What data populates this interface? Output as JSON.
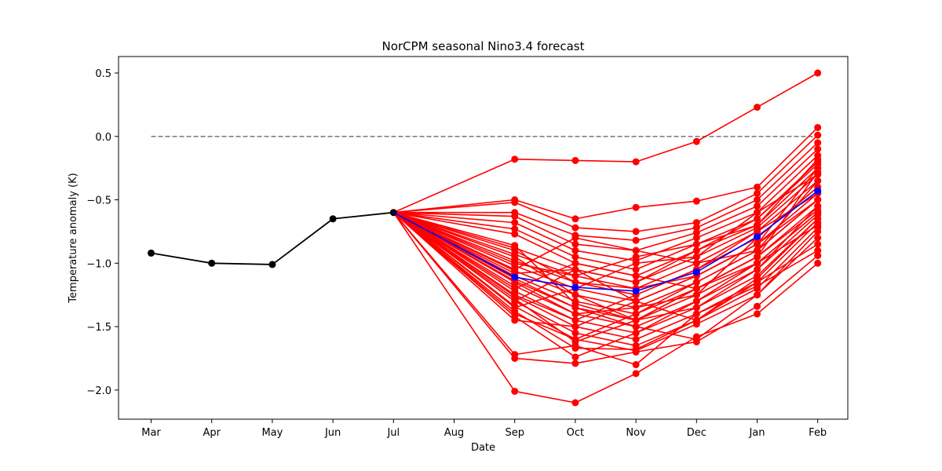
{
  "chart_data": {
    "type": "line",
    "title": "NorCPM seasonal Nino3.4 forecast",
    "xlabel": "Date",
    "ylabel": "Temperature anomaly (K)",
    "categories": [
      "Mar",
      "Apr",
      "May",
      "Jun",
      "Jul",
      "Aug",
      "Sep",
      "Oct",
      "Nov",
      "Dec",
      "Jan",
      "Feb"
    ],
    "ylim": [
      -2.23,
      0.63
    ],
    "yticks": [
      0.5,
      0.0,
      -0.5,
      -1.0,
      -1.5,
      -2.0
    ],
    "ytick_labels": [
      "0.5",
      "0.0",
      "−0.5",
      "−1.0",
      "−1.5",
      "−2.0"
    ],
    "reference_line": {
      "value": 0.0,
      "from": "Mar",
      "to": "Feb",
      "style": "dashed",
      "color": "#808080"
    },
    "colors": {
      "observed": "#000000",
      "ensemble": "#ff0000",
      "mean": "#0000ff"
    },
    "observed": {
      "categories": [
        "Mar",
        "Apr",
        "May",
        "Jun",
        "Jul"
      ],
      "values": [
        -0.92,
        -1.0,
        -1.01,
        -0.65,
        -0.6
      ]
    },
    "forecast_start": {
      "category": "Jul",
      "value": -0.6
    },
    "forecast_categories": [
      "Sep",
      "Oct",
      "Nov",
      "Dec",
      "Jan",
      "Feb"
    ],
    "ensemble": [
      [
        -0.18,
        -0.19,
        -0.2,
        -0.04,
        0.23,
        0.5
      ],
      [
        -2.01,
        -2.1,
        -1.87,
        -1.58,
        -1.4,
        -1.0
      ],
      [
        -1.75,
        -1.79,
        -1.7,
        -1.62,
        -1.34,
        -0.94
      ],
      [
        -1.72,
        -1.65,
        -1.8,
        -1.4,
        -1.18,
        -0.9
      ],
      [
        -0.5,
        -0.65,
        -0.56,
        -0.51,
        -0.4,
        0.07
      ],
      [
        -0.52,
        -0.72,
        -0.75,
        -0.68,
        -0.45,
        0.01
      ],
      [
        -0.6,
        -0.78,
        -0.82,
        -0.72,
        -0.5,
        -0.05
      ],
      [
        -0.63,
        -0.85,
        -0.9,
        -0.76,
        -0.55,
        -0.1
      ],
      [
        -0.68,
        -0.9,
        -0.98,
        -0.8,
        -0.6,
        -0.15
      ],
      [
        -0.73,
        -0.95,
        -1.05,
        -0.85,
        -0.65,
        -0.2
      ],
      [
        -0.77,
        -1.0,
        -1.1,
        -0.9,
        -0.7,
        -0.25
      ],
      [
        -0.88,
        -1.05,
        -1.15,
        -0.95,
        -0.72,
        -0.3
      ],
      [
        -0.93,
        -1.1,
        -1.2,
        -1.0,
        -0.75,
        -0.35
      ],
      [
        -0.98,
        -1.15,
        -1.25,
        -1.05,
        -0.8,
        -0.4
      ],
      [
        -1.02,
        -1.2,
        -1.3,
        -1.1,
        -0.85,
        -0.45
      ],
      [
        -1.06,
        -1.25,
        -1.35,
        -1.15,
        -0.9,
        -0.5
      ],
      [
        -1.1,
        -1.3,
        -1.4,
        -1.2,
        -0.95,
        -0.55
      ],
      [
        -1.14,
        -1.35,
        -1.45,
        -1.25,
        -1.0,
        -0.6
      ],
      [
        -1.18,
        -1.4,
        -1.5,
        -1.3,
        -1.05,
        -0.62
      ],
      [
        -1.22,
        -1.45,
        -1.55,
        -1.35,
        -1.1,
        -0.65
      ],
      [
        -1.26,
        -1.5,
        -1.6,
        -1.4,
        -1.15,
        -0.68
      ],
      [
        -1.3,
        -1.55,
        -1.65,
        -1.45,
        -1.2,
        -0.72
      ],
      [
        -1.34,
        -1.6,
        -1.69,
        -1.48,
        -1.25,
        -0.75
      ],
      [
        -1.38,
        -1.67,
        -1.68,
        -1.45,
        -1.15,
        -0.85
      ],
      [
        -1.42,
        -1.74,
        -1.55,
        -1.3,
        -1.0,
        -0.6
      ],
      [
        -1.45,
        -1.5,
        -1.3,
        -1.1,
        -0.85,
        -0.5
      ],
      [
        -0.86,
        -1.32,
        -1.45,
        -1.2,
        -0.95,
        -0.28
      ],
      [
        -1.0,
        -1.1,
        -0.95,
        -0.85,
        -0.7,
        -0.18
      ],
      [
        -1.05,
        -0.8,
        -0.9,
        -1.0,
        -0.9,
        -0.35
      ],
      [
        -1.15,
        -1.4,
        -1.35,
        -1.25,
        -0.8,
        -0.4
      ],
      [
        -0.95,
        -1.25,
        -1.45,
        -1.35,
        -1.05,
        -0.55
      ],
      [
        -1.2,
        -1.0,
        -1.1,
        -1.2,
        -1.0,
        -0.7
      ],
      [
        -1.35,
        -1.2,
        -1.0,
        -0.95,
        -0.6,
        -0.3
      ],
      [
        -1.25,
        -1.45,
        -1.25,
        -1.05,
        -0.75,
        -0.45
      ],
      [
        -1.08,
        -1.05,
        -1.3,
        -1.45,
        -1.12,
        -0.65
      ],
      [
        -1.4,
        -1.6,
        -1.4,
        -1.15,
        -0.9,
        -0.5
      ],
      [
        -1.12,
        -1.35,
        -1.5,
        -1.6,
        -1.25,
        -0.8
      ],
      [
        -0.9,
        -1.15,
        -1.2,
        -1.1,
        -0.85,
        -0.25
      ],
      [
        -1.3,
        -1.05,
        -1.15,
        -0.9,
        -0.65,
        -0.22
      ],
      [
        -1.28,
        -1.62,
        -1.45,
        -1.2,
        -0.95,
        -0.58
      ]
    ],
    "mean": {
      "values": [
        -1.11,
        -1.19,
        -1.22,
        -1.07,
        -0.79,
        -0.43
      ]
    }
  }
}
